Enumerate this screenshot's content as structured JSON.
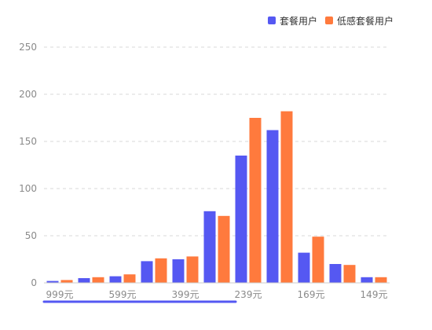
{
  "colors": {
    "series_1": "#5558f2",
    "series_2": "#ff7a3d",
    "grid": "#d9d9d9",
    "axis": "#cccccc",
    "tick_text": "#8a8a8a",
    "scrollbar": "#5558f2"
  },
  "chart_data": {
    "type": "bar",
    "title": "",
    "xlabel": "",
    "ylabel": "",
    "ylim": [
      0,
      250
    ],
    "yticks": [
      0,
      50,
      100,
      150,
      200,
      250
    ],
    "grid": true,
    "grid_style": "dashed",
    "legend_position": "top-right",
    "categories": [
      "999元",
      "",
      "599元",
      "",
      "399元",
      "",
      "239元",
      "",
      "169元",
      "",
      "149元"
    ],
    "series": [
      {
        "name": "套餐用户",
        "values": [
          2,
          5,
          7,
          23,
          25,
          76,
          135,
          162,
          32,
          20,
          6
        ]
      },
      {
        "name": "低感套餐用户",
        "values": [
          3,
          6,
          9,
          26,
          28,
          71,
          175,
          182,
          49,
          19,
          6
        ]
      }
    ],
    "scrollbar_visible_fraction": 0.55
  }
}
